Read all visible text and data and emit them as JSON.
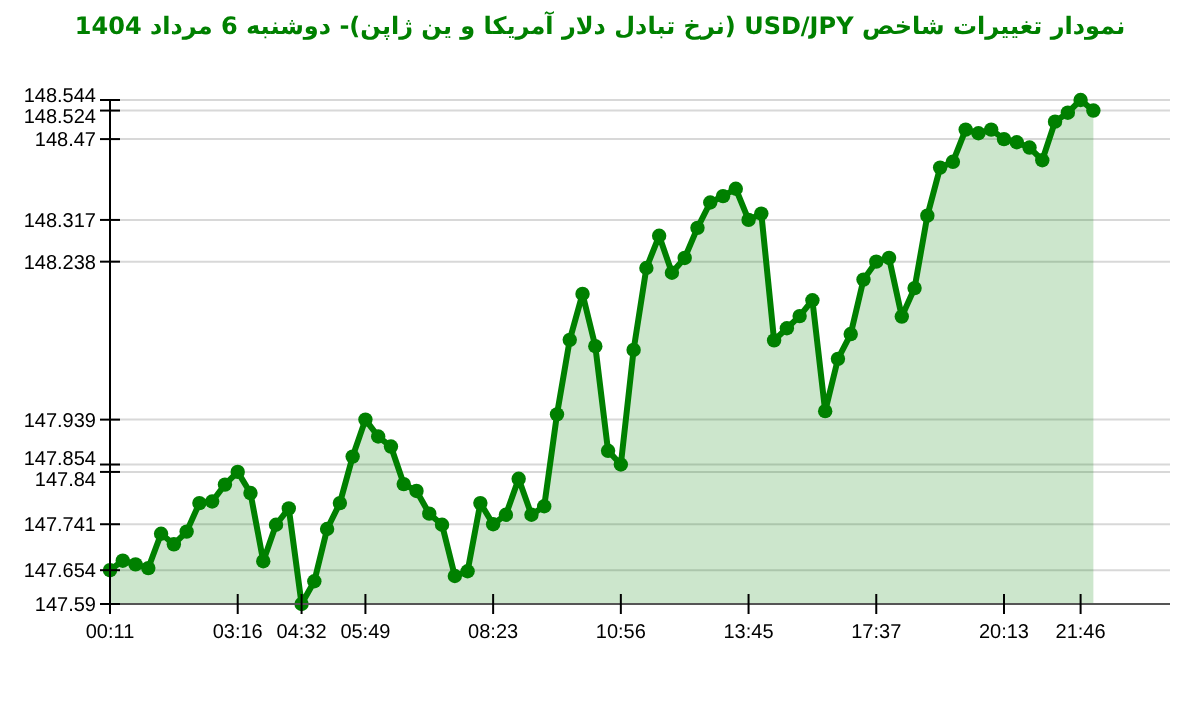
{
  "chart_data": {
    "type": "area",
    "title": "نمودار تغییرات شاخص USD/JPY (نرخ تبادل دلار آمریکا و ین ژاپن)-  دوشنبه  6 مرداد 1404",
    "categories": [
      "00:11",
      null,
      null,
      null,
      null,
      null,
      null,
      null,
      null,
      null,
      "03:16",
      null,
      null,
      null,
      null,
      "04:32",
      null,
      null,
      null,
      null,
      "05:49",
      null,
      null,
      null,
      null,
      null,
      null,
      null,
      null,
      null,
      "08:23",
      null,
      null,
      null,
      null,
      null,
      null,
      null,
      null,
      null,
      "10:56",
      null,
      null,
      null,
      null,
      null,
      null,
      null,
      null,
      null,
      "13:45",
      null,
      null,
      null,
      null,
      null,
      null,
      null,
      null,
      null,
      "17:37",
      null,
      null,
      null,
      null,
      null,
      null,
      null,
      null,
      null,
      "20:13",
      null,
      null,
      null,
      null,
      null,
      "21:46",
      null
    ],
    "series": [
      {
        "color": "#008000",
        "values": [
          147.654,
          147.672,
          147.665,
          147.658,
          147.723,
          147.703,
          147.727,
          147.781,
          147.784,
          147.816,
          147.84,
          147.8,
          147.671,
          147.74,
          147.771,
          147.59,
          147.633,
          147.732,
          147.781,
          147.869,
          147.939,
          147.907,
          147.888,
          147.817,
          147.804,
          147.761,
          147.74,
          147.643,
          147.652,
          147.781,
          147.741,
          147.759,
          147.827,
          147.759,
          147.775,
          147.949,
          148.09,
          148.177,
          148.078,
          147.88,
          147.854,
          148.071,
          148.226,
          148.287,
          148.217,
          148.245,
          148.302,
          148.35,
          148.362,
          148.376,
          148.317,
          148.329,
          148.089,
          148.112,
          148.135,
          148.165,
          147.955,
          148.054,
          148.101,
          148.204,
          148.238,
          148.245,
          148.134,
          148.188,
          148.325,
          148.416,
          148.427,
          148.488,
          148.481,
          148.488,
          148.47,
          148.464,
          148.454,
          148.43,
          148.503,
          148.52,
          148.544,
          148.524
        ]
      }
    ],
    "ylim": [
      147.59,
      148.544
    ],
    "yticks": [
      147.59,
      147.654,
      147.741,
      147.84,
      147.854,
      147.939,
      148.238,
      148.317,
      148.47,
      148.524,
      148.544
    ],
    "grid": "y",
    "marker": "circle"
  }
}
